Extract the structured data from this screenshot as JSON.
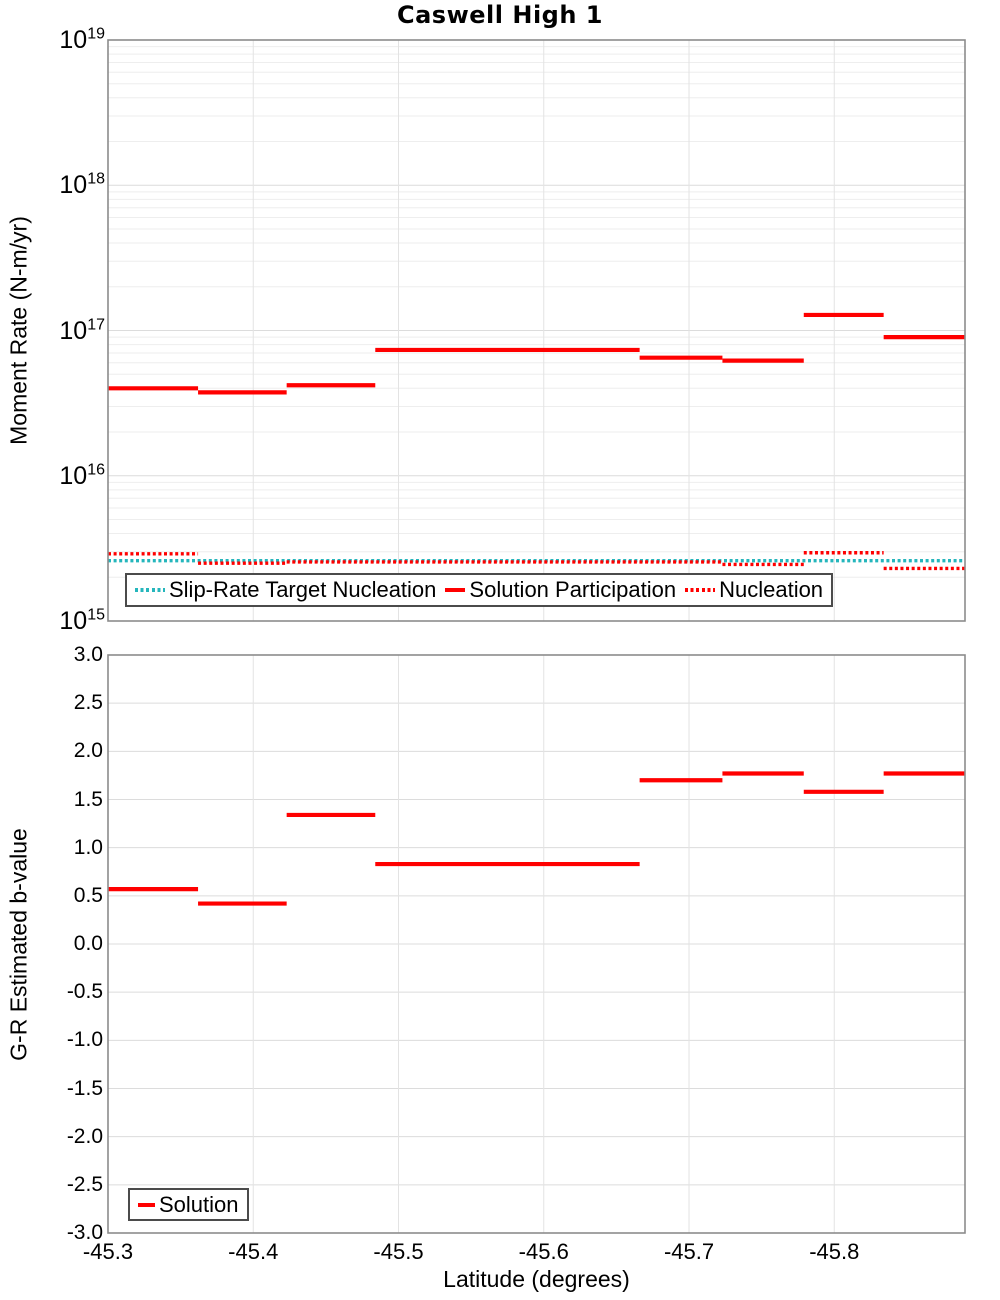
{
  "colors": {
    "red": "#ff0000",
    "cyan": "#25b6bc",
    "grid_major": "#dcdcdc",
    "grid_minor": "#eeeeee",
    "grid_vertical": "#e3e3e3",
    "plot_border": "#8c8c8c",
    "legend_border": "#4b4b4b",
    "text": "#000000"
  },
  "chart_data": [
    {
      "type": "line",
      "panel": "moment-rate",
      "title": "Caswell High 1",
      "ylabel": "Moment Rate (N-m/yr)",
      "yscale": "log",
      "ylim": [
        1000000000000000.0,
        1e+19
      ],
      "ytick_exponents": [
        19,
        18,
        17,
        16,
        15
      ],
      "xlim": [
        -45.3,
        -45.89
      ],
      "xticks": [
        -45.3,
        -45.4,
        -45.5,
        -45.6,
        -45.7,
        -45.8
      ],
      "x_bin_edges": [
        -45.3,
        -45.362,
        -45.423,
        -45.484,
        -45.666,
        -45.723,
        -45.779,
        -45.834,
        -45.89
      ],
      "grid": true,
      "legend_position": "inside-bottom-left",
      "series": [
        {
          "name": "Slip-Rate Target Nucleation",
          "style": "dotted",
          "color": "cyan",
          "values": [
            2600000000000000.0,
            2600000000000000.0,
            2600000000000000.0,
            2600000000000000.0,
            2600000000000000.0,
            2600000000000000.0,
            2600000000000000.0,
            2600000000000000.0
          ]
        },
        {
          "name": "Nucleation",
          "style": "dotted",
          "color": "red",
          "values": [
            2900000000000000.0,
            2500000000000000.0,
            2550000000000000.0,
            2550000000000000.0,
            2550000000000000.0,
            2450000000000000.0,
            2950000000000000.0,
            2300000000000000.0
          ]
        },
        {
          "name": "Solution Participation",
          "style": "solid",
          "color": "red",
          "values": [
            4e+16,
            3.75e+16,
            4.2e+16,
            7.35e+16,
            6.5e+16,
            6.2e+16,
            1.28e+17,
            9e+16
          ]
        }
      ]
    },
    {
      "type": "line",
      "panel": "b-value",
      "ylabel": "G-R Estimated b-value",
      "xlabel": "Latitude (degrees)",
      "yscale": "linear",
      "ylim": [
        -3.0,
        3.0
      ],
      "yticks": [
        3.0,
        2.5,
        2.0,
        1.5,
        1.0,
        0.5,
        0.0,
        -0.5,
        -1.0,
        -1.5,
        -2.0,
        -2.5,
        -3.0
      ],
      "xlim": [
        -45.3,
        -45.89
      ],
      "xticks": [
        -45.3,
        -45.4,
        -45.5,
        -45.6,
        -45.7,
        -45.8
      ],
      "x_bin_edges": [
        -45.3,
        -45.362,
        -45.423,
        -45.484,
        -45.666,
        -45.723,
        -45.779,
        -45.834,
        -45.89
      ],
      "grid": true,
      "legend_position": "inside-bottom-left",
      "series": [
        {
          "name": "Solution",
          "style": "solid",
          "color": "red",
          "values": [
            0.57,
            0.42,
            1.34,
            0.83,
            1.7,
            1.77,
            1.58,
            1.77
          ]
        }
      ]
    }
  ]
}
